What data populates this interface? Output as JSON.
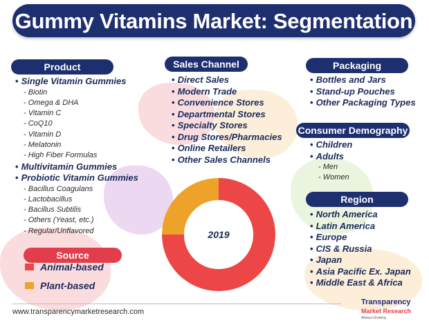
{
  "title": "Gummy Vitamins Market: Segmentation",
  "product": {
    "header": "Product",
    "items": [
      {
        "label": "Single Vitamin Gummies",
        "level": "main"
      },
      {
        "label": "Biotin",
        "level": "sub"
      },
      {
        "label": "Omega & DHA",
        "level": "sub"
      },
      {
        "label": "Vitamin C",
        "level": "sub"
      },
      {
        "label": "CoQ10",
        "level": "sub"
      },
      {
        "label": "Vitamin D",
        "level": "sub"
      },
      {
        "label": "Melatonin",
        "level": "sub"
      },
      {
        "label": "High Fiber Formulas",
        "level": "sub"
      },
      {
        "label": "Multivitamin Gummies",
        "level": "main"
      },
      {
        "label": "Probiotic Vitamin Gummies",
        "level": "main"
      },
      {
        "label": "Bacillus Coagulans",
        "level": "sub"
      },
      {
        "label": "Lactobacillus",
        "level": "sub"
      },
      {
        "label": "Bacillus Subtilis",
        "level": "sub"
      },
      {
        "label": "Others (Yeast, etc.)",
        "level": "sub"
      },
      {
        "label": "Regular/Unflavored",
        "level": "sub"
      }
    ]
  },
  "sales_channel": {
    "header": "Sales Channel",
    "items": [
      "Direct Sales",
      "Modern Trade",
      "Convenience Stores",
      "Departmental Stores",
      "Specialty Stores",
      "Drug Stores/Pharmacies",
      "Online Retailers",
      "Other Sales Channels"
    ]
  },
  "packaging": {
    "header": "Packaging",
    "items": [
      "Bottles and Jars",
      "Stand-up Pouches",
      "Other Packaging Types"
    ]
  },
  "consumer_demography": {
    "header": "Consumer Demography",
    "items": [
      {
        "label": "Children",
        "level": "main"
      },
      {
        "label": "Adults",
        "level": "main"
      },
      {
        "label": "Men",
        "level": "sub"
      },
      {
        "label": "Women",
        "level": "sub"
      }
    ]
  },
  "region": {
    "header": "Region",
    "items": [
      "North America",
      "Latin America",
      "Europe",
      "CIS & Russia",
      "Japan",
      "Asia Pacific Ex. Japan",
      "Middle East & Africa"
    ]
  },
  "source": {
    "header": "Source"
  },
  "footer": {
    "url": "www.transparencymarketresearch.com"
  },
  "logo": {
    "line1": "Transparency",
    "line2": "Market Research",
    "line3": "Always Growing"
  },
  "colors": {
    "navy": "#1d2f6f",
    "accent_red": "#e23d4b",
    "animal": "#ec4646",
    "plant": "#efa22a"
  },
  "chart_data": {
    "type": "pie",
    "title": "2019",
    "donut": true,
    "series": [
      {
        "name": "Animal-based",
        "value": 75,
        "color": "#ec4646"
      },
      {
        "name": "Plant-based",
        "value": 25,
        "color": "#efa22a"
      }
    ],
    "legend_position": "left"
  }
}
